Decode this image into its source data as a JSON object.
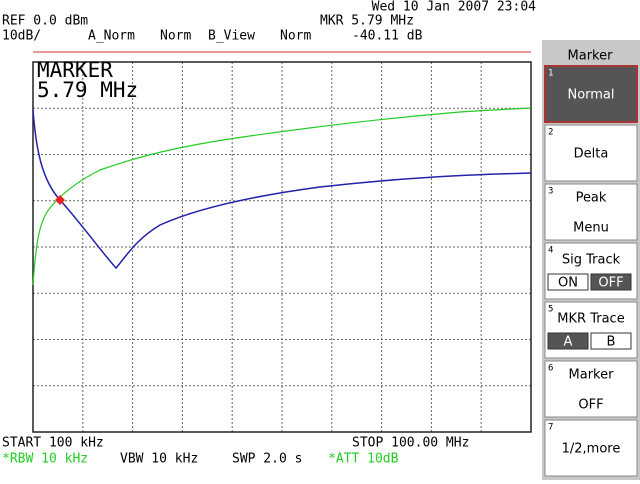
{
  "header": {
    "date": "Wed 10 Jan 2007 23:04",
    "ref": "REF 0.0 dBm",
    "scale": "10dB/",
    "trace_a": "A_Norm",
    "norm_a": "Norm",
    "trace_b": "B_View",
    "norm_b": "Norm",
    "marker_freq": "MKR 5.79 MHz",
    "marker_level": "-40.11 dB"
  },
  "display": {
    "marker_title": "MARKER",
    "marker_freq": "5.79 MHz"
  },
  "footer": {
    "start": "START 100 kHz",
    "stop": "STOP 100.00 MHz",
    "rbw": "*RBW 10 kHz",
    "vbw": "VBW 10 kHz",
    "swp": "SWP 2.0 s",
    "att": "*ATT 10dB"
  },
  "menu": {
    "title": "Marker",
    "buttons": [
      {
        "number": "1",
        "lines": [
          "Normal"
        ]
      },
      {
        "number": "2",
        "lines": [
          "Delta"
        ]
      },
      {
        "number": "3",
        "lines": [
          "Peak",
          "Menu"
        ]
      },
      {
        "number": "4",
        "lines": [
          "Sig Track"
        ],
        "options": [
          "ON",
          "OFF"
        ]
      },
      {
        "number": "5",
        "lines": [
          "MKR Trace"
        ],
        "options": [
          "A",
          "B"
        ]
      },
      {
        "number": "6",
        "lines": [
          "Marker",
          "OFF"
        ]
      },
      {
        "number": "7",
        "lines": [
          "1/2,more"
        ]
      }
    ]
  }
}
